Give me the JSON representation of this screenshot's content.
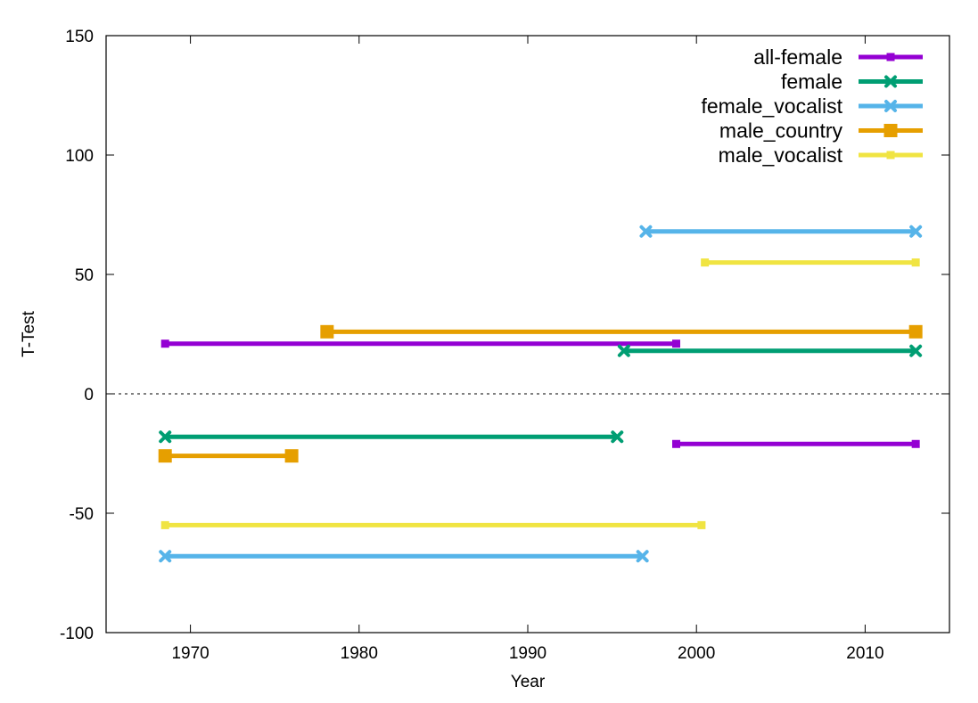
{
  "chart_data": {
    "type": "line",
    "title": "",
    "xlabel": "Year",
    "ylabel": "T-Test",
    "xlim": [
      1965,
      2015
    ],
    "ylim": [
      -100,
      150
    ],
    "xticks": [
      1970,
      1980,
      1990,
      2000,
      2010
    ],
    "yticks": [
      -100,
      -50,
      0,
      50,
      100,
      150
    ],
    "zero_line": true,
    "legend_position": "top-right",
    "series": [
      {
        "name": "all-female",
        "color": "#9400d3",
        "marker": "small-square",
        "segments": [
          {
            "x": [
              1968.5,
              1998.8
            ],
            "y": [
              21,
              21
            ]
          },
          {
            "x": [
              1998.8,
              2013.0
            ],
            "y": [
              -21,
              -21
            ]
          }
        ]
      },
      {
        "name": "female",
        "color": "#009e73",
        "marker": "x",
        "segments": [
          {
            "x": [
              1968.5,
              1995.3
            ],
            "y": [
              -18,
              -18
            ]
          },
          {
            "x": [
              1995.7,
              2013.0
            ],
            "y": [
              18,
              18
            ]
          }
        ]
      },
      {
        "name": "female_vocalist",
        "color": "#56b4e9",
        "marker": "x",
        "segments": [
          {
            "x": [
              1968.5,
              1996.8
            ],
            "y": [
              -68,
              -68
            ]
          },
          {
            "x": [
              1997.0,
              2013.0
            ],
            "y": [
              68,
              68
            ]
          }
        ]
      },
      {
        "name": "male_country",
        "color": "#e69f00",
        "marker": "large-square",
        "segments": [
          {
            "x": [
              1968.5,
              1976.0
            ],
            "y": [
              -26,
              -26
            ]
          },
          {
            "x": [
              1978.1,
              2013.0
            ],
            "y": [
              26,
              26
            ]
          }
        ]
      },
      {
        "name": "male_vocalist",
        "color": "#f0e442",
        "marker": "small-square",
        "segments": [
          {
            "x": [
              1968.5,
              2000.3
            ],
            "y": [
              -55,
              -55
            ]
          },
          {
            "x": [
              2000.5,
              2013.0
            ],
            "y": [
              55,
              55
            ]
          }
        ]
      }
    ]
  }
}
